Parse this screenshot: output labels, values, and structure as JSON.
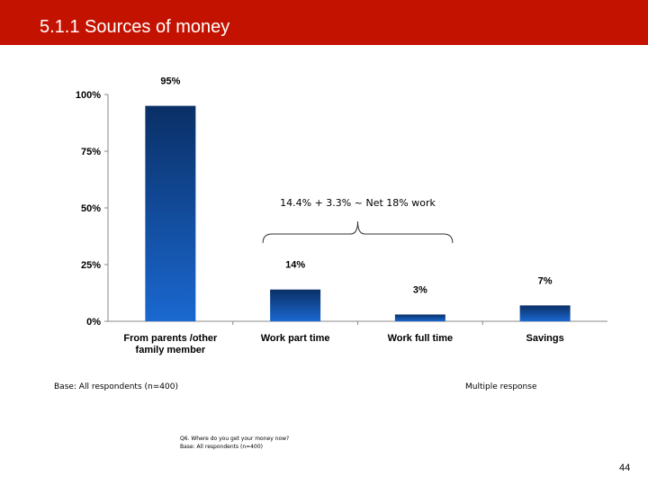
{
  "header": {
    "title": "5.1.1 Sources of money"
  },
  "chart_data": {
    "type": "bar",
    "categories": [
      "From parents /other family member",
      "Work part time",
      "Work full time",
      "Savings"
    ],
    "values": [
      95,
      14,
      3,
      7
    ],
    "value_labels": [
      "95%",
      "14%",
      "3%",
      "7%"
    ],
    "ylim": [
      0,
      100
    ],
    "y_ticks": [
      "0%",
      "25%",
      "50%",
      "75%",
      "100%"
    ],
    "annotation": "14.4% + 3.3% ~ Net 18% work",
    "bar_color_top": "#0a2f66",
    "bar_color_bottom": "#1a68d0",
    "grid": false,
    "legend": "none"
  },
  "base_left": "Base: All respondents (n=400)",
  "base_right": "Multiple response",
  "footnote": {
    "line1": "Q6. Where do you get your money now?",
    "line2": "Base: All respondents (n=400)"
  },
  "page_number": "44"
}
